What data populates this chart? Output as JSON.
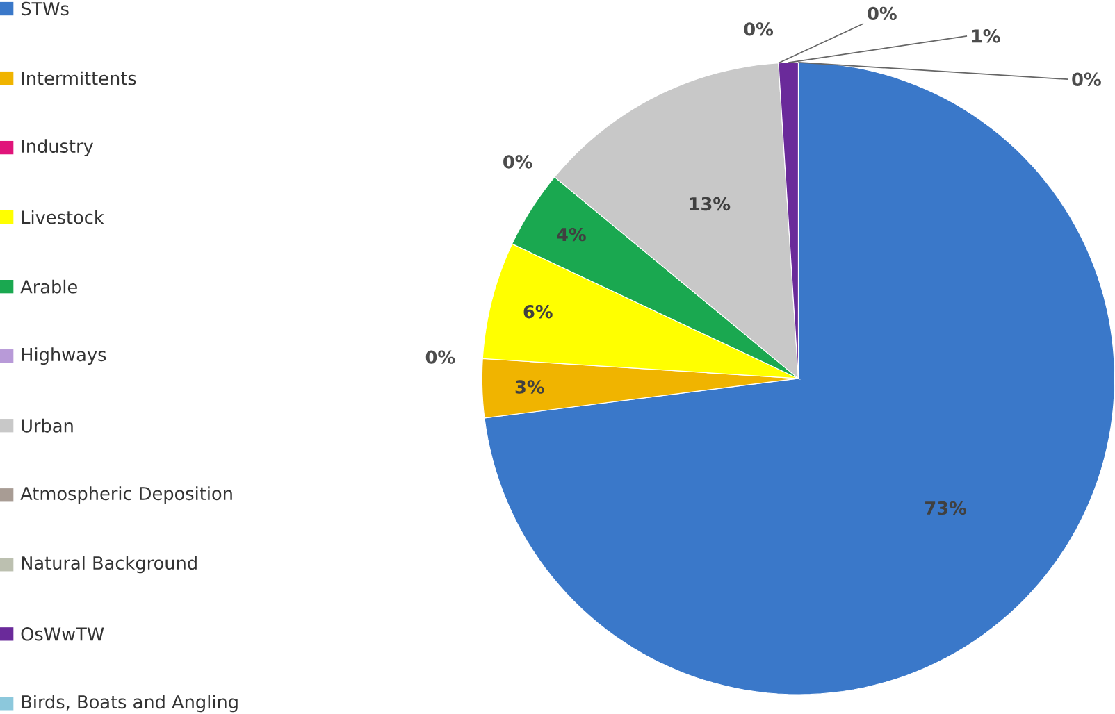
{
  "chart_data": {
    "type": "pie",
    "categories": [
      "STWs",
      "Intermittents",
      "Industry",
      "Livestock",
      "Arable",
      "Highways",
      "Urban",
      "Atmospheric Deposition",
      "Natural Background",
      "OsWwTW",
      "Birds, Boats and Angling"
    ],
    "values": [
      73,
      3,
      0,
      6,
      4,
      0,
      13,
      0,
      0,
      1,
      0
    ],
    "value_labels": [
      "73%",
      "3%",
      "0%",
      "6%",
      "4%",
      "0%",
      "13%",
      "0%",
      "0%",
      "1%",
      "0%"
    ],
    "colors": [
      "#3a78c9",
      "#f0b400",
      "#e0147a",
      "#ffff00",
      "#1aa850",
      "#b89ad8",
      "#c8c8c8",
      "#a89c94",
      "#bcc0b0",
      "#6a2a9a",
      "#8cc8dc"
    ],
    "legend": "left"
  }
}
